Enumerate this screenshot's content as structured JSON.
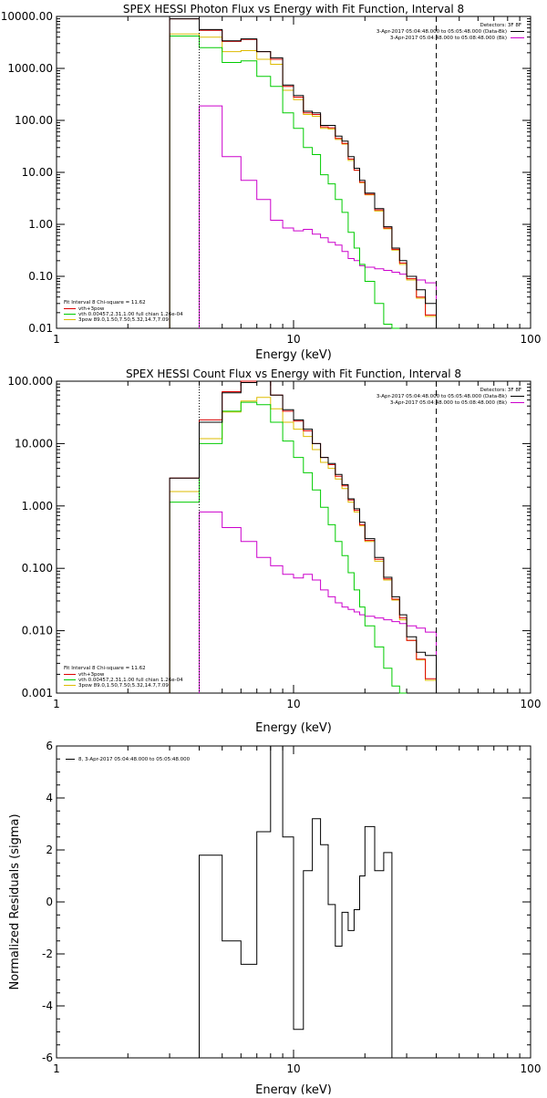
{
  "colors": {
    "total": "#000000",
    "vth_plus_3pow": "#dd0000",
    "vth": "#00cc00",
    "pow": "#ddbb00",
    "bk": "#cc00cc"
  },
  "energy_edges": [
    3,
    4,
    5,
    6,
    7,
    8,
    9,
    10,
    11,
    12,
    13,
    14,
    15,
    16,
    17,
    18,
    19,
    20,
    22,
    24,
    26,
    28,
    30,
    33,
    36,
    40
  ],
  "panels": [
    {
      "title": "SPEX HESSI Photon Flux vs Energy with Fit Function, Interval 8",
      "xlabel": "Energy (keV)",
      "ticks_x": [
        "1",
        "10",
        "100"
      ],
      "ticks_y": [
        "0.01",
        "0.10",
        "1.00",
        "10.00",
        "100.00",
        "1000.00",
        "10000.00"
      ],
      "legend_right": [
        "Detectors: 3F 8F",
        "3-Apr-2017 05:04:48.000 to 05:05:48.000 (Data-Bk)",
        "3-Apr-2017 05:04:48.000 to 05:08:48.000 (Bk)"
      ],
      "legend_left": [
        "Fit Interval 8   Chi-square = 11.62",
        "vth+3pow",
        "vth 0.00457,2.31,1.00  full chian 1.26e-04",
        "3pow 89.0,1.50,7.50,5.32,14.7,7.09"
      ]
    },
    {
      "title": "SPEX HESSI Count Flux vs Energy with Fit Function, Interval 8",
      "xlabel": "Energy (keV)",
      "ticks_x": [
        "1",
        "10",
        "100"
      ],
      "ticks_y": [
        "0.001",
        "0.010",
        "0.100",
        "1.000",
        "10.000",
        "100.000"
      ],
      "legend_right": [
        "Detectors: 3F 8F",
        "3-Apr-2017 05:04:48.000 to 05:05:48.000 (Data-Bk)",
        "3-Apr-2017 05:04:48.000 to 05:08:48.000 (Bk)"
      ],
      "legend_left": [
        "Fit Interval 8   Chi-square = 11.62",
        "vth+3pow",
        "vth 0.00457,2.31,1.00  full chian 1.26e-04",
        "3pow 89.0,1.50,7.50,5.32,14.7,7.09"
      ]
    },
    {
      "title": "",
      "xlabel": "Energy (keV)",
      "ylabel": "Normalized Residuals (sigma)",
      "ticks_x": [
        "1",
        "10",
        "100"
      ],
      "ticks_y": [
        "-6",
        "-4",
        "-2",
        "0",
        "2",
        "4",
        "6"
      ],
      "legend_left": [
        "8, 3-Apr-2017 05:04:48.000 to 05:05:48.000"
      ]
    }
  ],
  "chart_data": [
    {
      "type": "line",
      "title": "SPEX HESSI Photon Flux vs Energy with Fit Function, Interval 8",
      "xlabel": "Energy (keV)",
      "ylabel": "",
      "xscale": "log",
      "yscale": "log",
      "xlim": [
        1,
        100
      ],
      "ylim": [
        0.01,
        10000
      ],
      "fit_range_keV": [
        4,
        40
      ],
      "series": [
        {
          "name": "Data-Bk",
          "color": "#000000",
          "values": [
            9000,
            5600,
            3400,
            3700,
            2100,
            1600,
            480,
            300,
            150,
            140,
            80,
            80,
            50,
            40,
            20,
            12,
            7,
            4,
            2,
            0.9,
            0.35,
            0.2,
            0.1,
            0.055,
            0.03
          ]
        },
        {
          "name": "vth+3pow",
          "color": "#dd0000",
          "values": [
            9000,
            5400,
            3300,
            3600,
            2100,
            1500,
            450,
            280,
            140,
            130,
            75,
            72,
            45,
            36,
            18,
            11,
            6.5,
            3.8,
            1.9,
            0.85,
            0.33,
            0.18,
            0.09,
            0.04,
            0.018
          ]
        },
        {
          "name": "vth",
          "color": "#00cc00",
          "values": [
            4200,
            2500,
            1300,
            1400,
            700,
            450,
            140,
            70,
            30,
            22,
            9,
            6,
            3,
            1.7,
            0.7,
            0.35,
            0.17,
            0.08,
            0.03,
            0.012,
            0.005
          ]
        },
        {
          "name": "3pow",
          "color": "#ddbb00",
          "values": [
            4600,
            4000,
            2100,
            2200,
            1500,
            1200,
            380,
            250,
            130,
            120,
            70,
            68,
            43,
            35,
            17,
            11,
            6.3,
            3.7,
            1.8,
            0.82,
            0.32,
            0.17,
            0.085,
            0.038,
            0.017
          ]
        },
        {
          "name": "Bk",
          "color": "#cc00cc",
          "values": [
            null,
            190,
            20,
            7,
            3,
            1.2,
            0.85,
            0.75,
            0.8,
            0.65,
            0.55,
            0.45,
            0.4,
            0.3,
            0.22,
            0.2,
            0.16,
            0.15,
            0.14,
            0.13,
            0.12,
            0.11,
            0.1,
            0.085,
            0.075
          ]
        }
      ]
    },
    {
      "type": "line",
      "title": "SPEX HESSI Count Flux vs Energy with Fit Function, Interval 8",
      "xlabel": "Energy (keV)",
      "ylabel": "",
      "xscale": "log",
      "yscale": "log",
      "xlim": [
        1,
        100
      ],
      "ylim": [
        0.001,
        100
      ],
      "fit_range_keV": [
        4,
        40
      ],
      "series": [
        {
          "name": "Data-Bk",
          "color": "#000000",
          "values": [
            2.8,
            22,
            65,
            95,
            100,
            60,
            35,
            24,
            17,
            10,
            6,
            4.8,
            3.2,
            2.2,
            1.3,
            0.9,
            0.55,
            0.3,
            0.15,
            0.072,
            0.035,
            0.018,
            0.008,
            0.0045,
            0.004
          ]
        },
        {
          "name": "vth+3pow",
          "color": "#dd0000",
          "values": [
            2.8,
            24,
            68,
            100,
            105,
            60,
            33,
            23,
            16,
            10,
            6,
            4.6,
            3,
            2.1,
            1.25,
            0.85,
            0.5,
            0.28,
            0.14,
            0.068,
            0.032,
            0.016,
            0.007,
            0.0035,
            0.0017
          ]
        },
        {
          "name": "vth",
          "color": "#00cc00",
          "values": [
            1.15,
            10,
            33,
            46,
            42,
            22,
            11,
            6,
            3.4,
            1.8,
            0.95,
            0.5,
            0.27,
            0.16,
            0.085,
            0.045,
            0.024,
            0.012,
            0.0055,
            0.0025,
            0.0013,
            0.0006
          ]
        },
        {
          "name": "3pow",
          "color": "#ddbb00",
          "values": [
            1.7,
            12,
            32,
            48,
            55,
            36,
            22,
            17,
            13,
            8,
            5,
            4,
            2.7,
            1.9,
            1.15,
            0.8,
            0.48,
            0.27,
            0.13,
            0.065,
            0.031,
            0.015,
            0.007,
            0.0034,
            0.0016
          ]
        },
        {
          "name": "Bk",
          "color": "#cc00cc",
          "values": [
            null,
            0.8,
            0.45,
            0.27,
            0.15,
            0.11,
            0.08,
            0.07,
            0.08,
            0.065,
            0.045,
            0.035,
            0.028,
            0.024,
            0.022,
            0.02,
            0.018,
            0.017,
            0.016,
            0.015,
            0.014,
            0.013,
            0.012,
            0.011,
            0.0095
          ]
        }
      ]
    },
    {
      "type": "line",
      "title": "",
      "xlabel": "Energy (keV)",
      "ylabel": "Normalized Residuals (sigma)",
      "xscale": "log",
      "yscale": "linear",
      "xlim": [
        1,
        100
      ],
      "ylim": [
        -6,
        6
      ],
      "series": [
        {
          "name": "8, 3-Apr-2017 05:04:48.000 to 05:05:48.000",
          "color": "#000000",
          "values": [
            null,
            1.8,
            -1.5,
            -2.4,
            2.7,
            6.1,
            2.5,
            -4.9,
            1.2,
            3.2,
            2.2,
            -0.1,
            -1.7,
            -0.4,
            -1.1,
            -0.3,
            1.0,
            2.9,
            1.2,
            1.9
          ]
        }
      ]
    }
  ]
}
